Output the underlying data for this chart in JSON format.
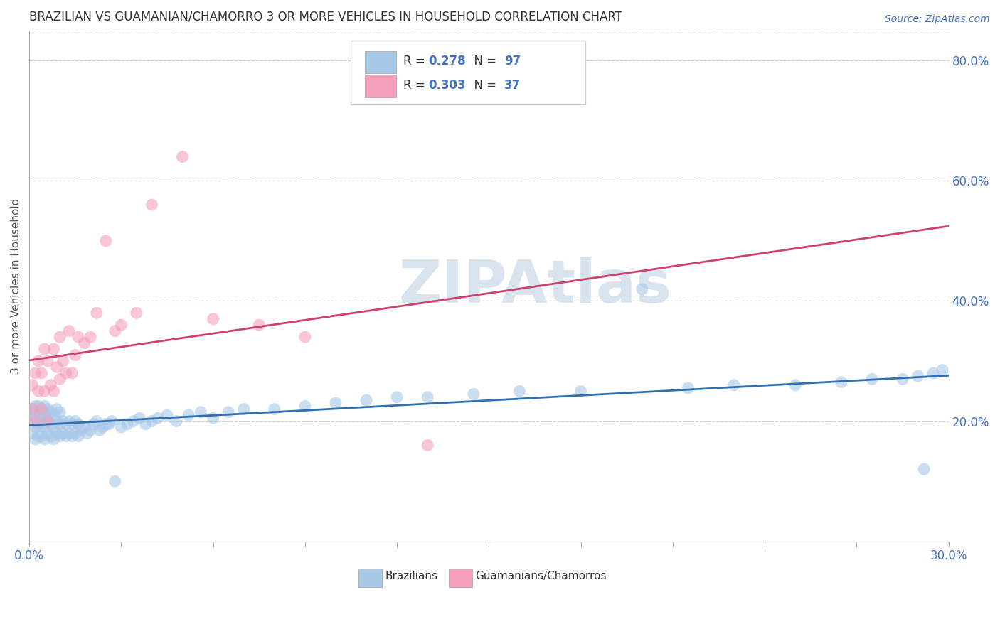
{
  "title": "BRAZILIAN VS GUAMANIAN/CHAMORRO 3 OR MORE VEHICLES IN HOUSEHOLD CORRELATION CHART",
  "source": "Source: ZipAtlas.com",
  "ylabel": "3 or more Vehicles in Household",
  "xlim": [
    0.0,
    0.3
  ],
  "ylim": [
    0.0,
    0.85
  ],
  "yticks_right": [
    0.2,
    0.4,
    0.6,
    0.8
  ],
  "blue_color": "#a8c8e8",
  "pink_color": "#f4a0b8",
  "blue_line_color": "#3070b0",
  "pink_line_color": "#d04070",
  "legend_r_blue": "R = 0.278",
  "legend_n_blue": "N = 97",
  "legend_r_pink": "R = 0.303",
  "legend_n_pink": "N = 37",
  "watermark": "ZIPAtlas",
  "watermark_color": "#c8d8e8",
  "blue_x": [
    0.001,
    0.001,
    0.001,
    0.001,
    0.002,
    0.002,
    0.002,
    0.002,
    0.002,
    0.003,
    0.003,
    0.003,
    0.003,
    0.003,
    0.004,
    0.004,
    0.004,
    0.004,
    0.005,
    0.005,
    0.005,
    0.005,
    0.005,
    0.006,
    0.006,
    0.006,
    0.006,
    0.007,
    0.007,
    0.007,
    0.008,
    0.008,
    0.008,
    0.009,
    0.009,
    0.009,
    0.01,
    0.01,
    0.01,
    0.011,
    0.011,
    0.012,
    0.012,
    0.013,
    0.013,
    0.014,
    0.014,
    0.015,
    0.015,
    0.016,
    0.016,
    0.017,
    0.018,
    0.019,
    0.02,
    0.021,
    0.022,
    0.023,
    0.024,
    0.025,
    0.026,
    0.027,
    0.028,
    0.03,
    0.032,
    0.034,
    0.036,
    0.038,
    0.04,
    0.042,
    0.045,
    0.048,
    0.052,
    0.056,
    0.06,
    0.065,
    0.07,
    0.08,
    0.09,
    0.1,
    0.11,
    0.12,
    0.13,
    0.145,
    0.16,
    0.18,
    0.2,
    0.215,
    0.23,
    0.25,
    0.265,
    0.275,
    0.285,
    0.29,
    0.292,
    0.295,
    0.298
  ],
  "blue_y": [
    0.18,
    0.2,
    0.21,
    0.22,
    0.17,
    0.19,
    0.205,
    0.215,
    0.225,
    0.175,
    0.195,
    0.205,
    0.215,
    0.225,
    0.175,
    0.195,
    0.21,
    0.22,
    0.17,
    0.19,
    0.205,
    0.215,
    0.225,
    0.18,
    0.2,
    0.21,
    0.22,
    0.175,
    0.195,
    0.215,
    0.17,
    0.19,
    0.21,
    0.18,
    0.2,
    0.22,
    0.175,
    0.195,
    0.215,
    0.18,
    0.2,
    0.175,
    0.195,
    0.18,
    0.2,
    0.175,
    0.195,
    0.18,
    0.2,
    0.175,
    0.195,
    0.185,
    0.19,
    0.18,
    0.185,
    0.195,
    0.2,
    0.185,
    0.19,
    0.195,
    0.195,
    0.2,
    0.1,
    0.19,
    0.195,
    0.2,
    0.205,
    0.195,
    0.2,
    0.205,
    0.21,
    0.2,
    0.21,
    0.215,
    0.205,
    0.215,
    0.22,
    0.22,
    0.225,
    0.23,
    0.235,
    0.24,
    0.24,
    0.245,
    0.25,
    0.25,
    0.42,
    0.255,
    0.26,
    0.26,
    0.265,
    0.27,
    0.27,
    0.275,
    0.12,
    0.28,
    0.285
  ],
  "pink_x": [
    0.001,
    0.001,
    0.002,
    0.002,
    0.003,
    0.003,
    0.004,
    0.004,
    0.005,
    0.005,
    0.006,
    0.006,
    0.007,
    0.008,
    0.008,
    0.009,
    0.01,
    0.01,
    0.011,
    0.012,
    0.013,
    0.014,
    0.015,
    0.016,
    0.018,
    0.02,
    0.022,
    0.025,
    0.028,
    0.03,
    0.035,
    0.04,
    0.05,
    0.06,
    0.075,
    0.09,
    0.13
  ],
  "pink_y": [
    0.22,
    0.26,
    0.2,
    0.28,
    0.25,
    0.3,
    0.22,
    0.28,
    0.25,
    0.32,
    0.2,
    0.3,
    0.26,
    0.25,
    0.32,
    0.29,
    0.27,
    0.34,
    0.3,
    0.28,
    0.35,
    0.28,
    0.31,
    0.34,
    0.33,
    0.34,
    0.38,
    0.5,
    0.35,
    0.36,
    0.38,
    0.56,
    0.64,
    0.37,
    0.36,
    0.34,
    0.16
  ]
}
